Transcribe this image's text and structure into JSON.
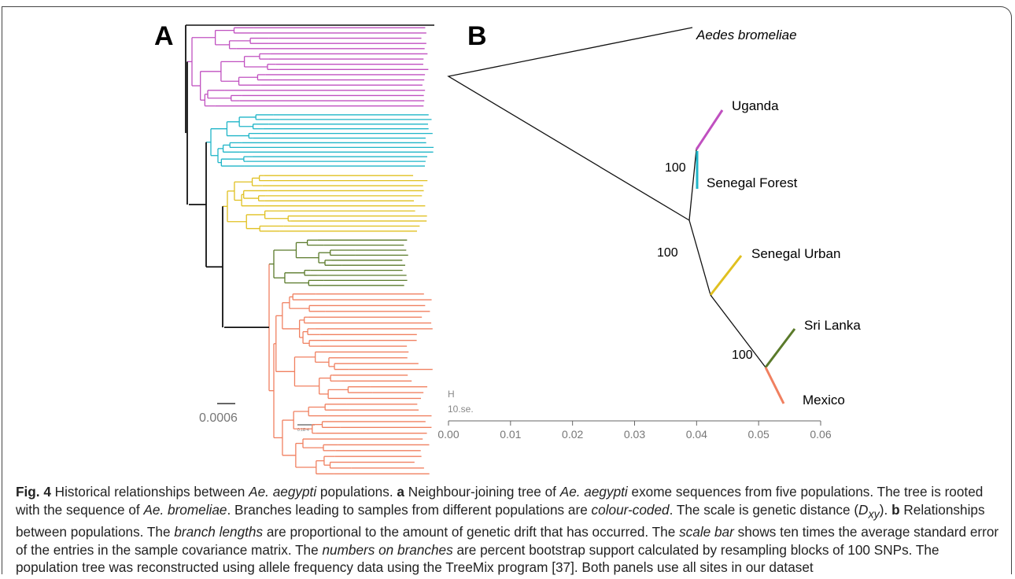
{
  "panel_a": {
    "label": "A",
    "scale_label": "0.0006",
    "small_label": "0.1E-4"
  },
  "panel_b": {
    "label": "B",
    "taxa": [
      "Aedes bromeliae",
      "Uganda",
      "Senegal Forest",
      "Senegal Urban",
      "Sri Lanka",
      "Mexico"
    ],
    "bootstrap": [
      "100",
      "100",
      "100"
    ],
    "scale": [
      "H",
      "10.se."
    ],
    "xlim": [
      0,
      0.06
    ],
    "xticks": [
      {
        "value": 0,
        "label": "0.00"
      },
      {
        "value": 0.01,
        "label": "0.01"
      },
      {
        "value": 0.02,
        "label": "0.02"
      },
      {
        "value": 0.03,
        "label": "0.03"
      },
      {
        "value": 0.04,
        "label": "0.04"
      },
      {
        "value": 0.05,
        "label": "0.05"
      },
      {
        "value": 0.06,
        "label": "0.06"
      }
    ]
  },
  "caption": [
    "Fig. 4",
    " Historical relationships between ",
    "Ae. aegypti",
    " populations. ",
    "a",
    " Neighbour-joining tree of ",
    "Ae. aegypti",
    " exome sequences from five populations. The tree is rooted with the sequence of ",
    "Ae. bromeliae",
    ". Branches leading to samples from different populations are ",
    "colour-coded",
    ". The scale is genetic distance (",
    "D",
    "xy",
    "). ",
    "b",
    " Relationships between populations. The ",
    "branch lengths",
    " are proportional to the amount of genetic drift that has occurred. The ",
    "scale bar",
    " shows ten times the average standard error of the entries in the sample covariance matrix. The ",
    "numbers on branches",
    " are percent bootstrap support calculated by resampling blocks of 100 SNPs. The population tree was reconstructed using allele frequency data using the TreeMix program [37]. Both panels use all sites in our dataset"
  ]
}
